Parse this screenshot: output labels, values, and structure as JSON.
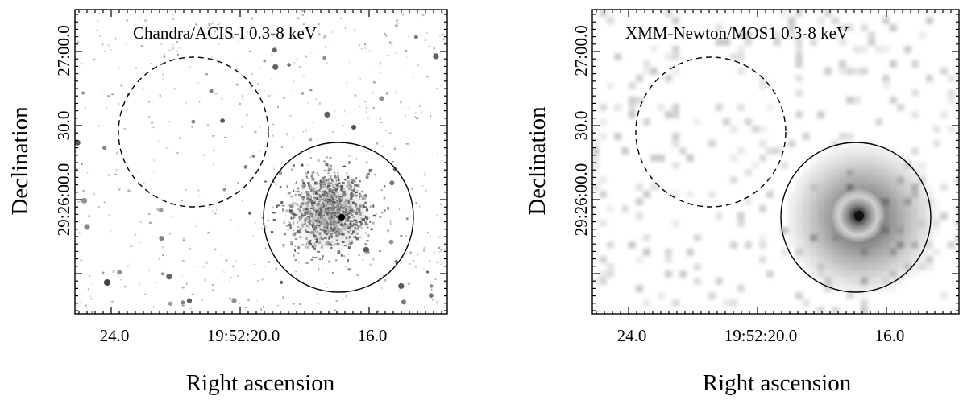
{
  "panels": [
    {
      "label": "Chandra/ACIS-I 0.3-8 keV",
      "style": "chandra",
      "x_ticks": [
        "24.0",
        "19:52:20.0",
        "16.0"
      ],
      "y_ticks": [
        "29:26:00.0",
        "30.0",
        "27:00.0"
      ],
      "x_axis_title": "Right ascension",
      "y_axis_title": "Declination"
    },
    {
      "label": "XMM-Newton/MOS1 0.3-8 keV",
      "style": "xmm",
      "x_ticks": [
        "24.0",
        "19:52:20.0",
        "16.0"
      ],
      "y_ticks": [
        "29:26:00.0",
        "30.0",
        "27:00.0"
      ],
      "x_axis_title": "Right ascension",
      "y_axis_title": "Declination"
    }
  ],
  "regions": {
    "source": "solid-circle",
    "background": "dashed-circle"
  },
  "colors": {
    "frame": "#000000",
    "map_background": "#ffffff",
    "emission": "#3a3a3a"
  }
}
